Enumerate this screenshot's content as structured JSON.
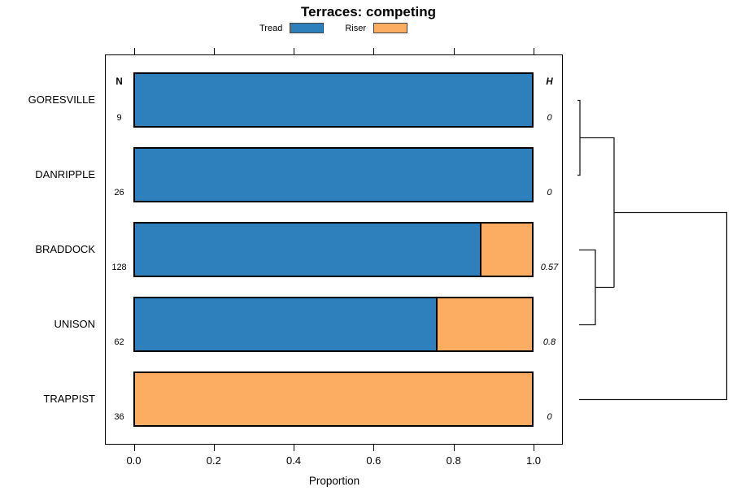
{
  "title": "Terraces: competing",
  "legend": [
    {
      "label": "Tread",
      "color": "#2E80BC"
    },
    {
      "label": "Riser",
      "color": "#FCAD62"
    }
  ],
  "columns": {
    "n_header": "N",
    "h_header": "H"
  },
  "axis": {
    "xlabel": "Proportion",
    "ticks": [
      "0.0",
      "0.2",
      "0.4",
      "0.6",
      "0.8",
      "1.0"
    ]
  },
  "rows": [
    {
      "label": "GORESVILLE",
      "n": "9",
      "h": "0",
      "tread": 1.0,
      "riser": 0.0
    },
    {
      "label": "DANRIPPLE",
      "n": "26",
      "h": "0",
      "tread": 1.0,
      "riser": 0.0
    },
    {
      "label": "BRADDOCK",
      "n": "128",
      "h": "0.57",
      "tread": 0.87,
      "riser": 0.13
    },
    {
      "label": "UNISON",
      "n": "62",
      "h": "0.8",
      "tread": 0.76,
      "riser": 0.24
    },
    {
      "label": "TRAPPIST",
      "n": "36",
      "h": "0",
      "tread": 0.0,
      "riser": 1.0
    }
  ],
  "chart_data": {
    "type": "bar",
    "orientation": "horizontal",
    "stacked": true,
    "title": "Terraces: competing",
    "xlabel": "Proportion",
    "xlim": [
      0,
      1
    ],
    "grid": false,
    "legend_position": "top",
    "categories": [
      "GORESVILLE",
      "DANRIPPLE",
      "BRADDOCK",
      "UNISON",
      "TRAPPIST"
    ],
    "series": [
      {
        "name": "Tread",
        "color": "#2E80BC",
        "values": [
          1.0,
          1.0,
          0.87,
          0.76,
          0.0
        ]
      },
      {
        "name": "Riser",
        "color": "#FCAD62",
        "values": [
          0.0,
          0.0,
          0.13,
          0.24,
          1.0
        ]
      }
    ],
    "sample_sizes_N": [
      9,
      26,
      128,
      62,
      36
    ],
    "heterogeneity_H": [
      0,
      0,
      0.57,
      0.8,
      0
    ],
    "dendrogram_newick": "(((GORESVILLE,DANRIPPLE),(BRADDOCK,UNISON)),TRAPPIST)"
  }
}
